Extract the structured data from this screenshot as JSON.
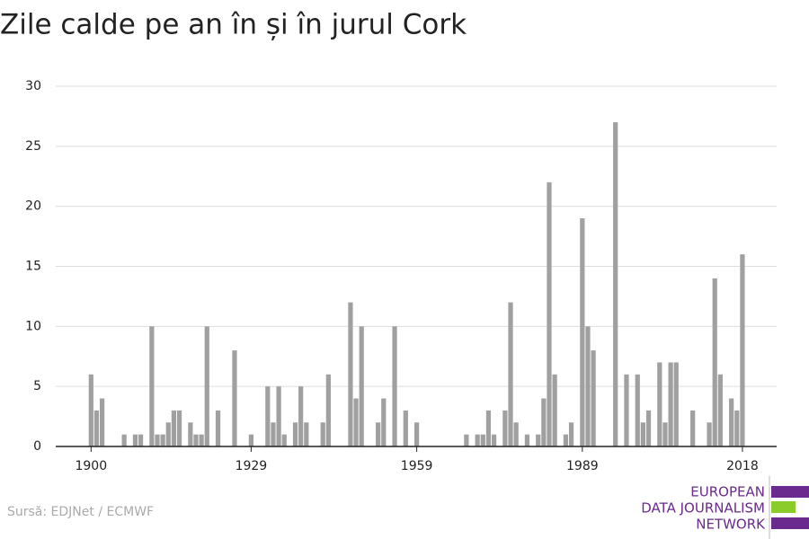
{
  "chart_data": {
    "type": "bar",
    "title": "Zile calde pe an în și în jurul Cork",
    "source": "Sursă: EDJNet / ECMWF",
    "logo": [
      "EUROPEAN",
      "DATA JOURNALISM",
      "NETWORK"
    ],
    "color": "#a0a0a0",
    "x": [
      1900,
      1901,
      1902,
      1903,
      1904,
      1905,
      1906,
      1907,
      1908,
      1909,
      1910,
      1911,
      1912,
      1913,
      1914,
      1915,
      1916,
      1917,
      1918,
      1919,
      1920,
      1921,
      1922,
      1923,
      1924,
      1925,
      1926,
      1927,
      1928,
      1929,
      1930,
      1931,
      1932,
      1933,
      1934,
      1935,
      1936,
      1937,
      1938,
      1939,
      1940,
      1941,
      1942,
      1943,
      1944,
      1945,
      1946,
      1947,
      1948,
      1949,
      1950,
      1951,
      1952,
      1953,
      1954,
      1955,
      1956,
      1957,
      1958,
      1959,
      1960,
      1961,
      1962,
      1963,
      1964,
      1965,
      1966,
      1967,
      1968,
      1969,
      1970,
      1971,
      1972,
      1973,
      1974,
      1975,
      1976,
      1977,
      1978,
      1979,
      1980,
      1981,
      1982,
      1983,
      1984,
      1985,
      1986,
      1987,
      1988,
      1989,
      1990,
      1991,
      1992,
      1993,
      1994,
      1995,
      1996,
      1997,
      1998,
      1999,
      2000,
      2001,
      2002,
      2003,
      2004,
      2005,
      2006,
      2007,
      2008,
      2009,
      2010,
      2011,
      2012,
      2013,
      2014,
      2015,
      2016,
      2017,
      2018
    ],
    "values": [
      6,
      3,
      4,
      0,
      0,
      0,
      1,
      0,
      1,
      1,
      0,
      10,
      1,
      1,
      2,
      3,
      3,
      0,
      2,
      1,
      1,
      10,
      0,
      3,
      0,
      0,
      8,
      0,
      0,
      1,
      0,
      0,
      5,
      2,
      5,
      1,
      0,
      2,
      5,
      2,
      0,
      0,
      2,
      6,
      0,
      0,
      0,
      12,
      4,
      10,
      0,
      0,
      2,
      4,
      0,
      10,
      0,
      3,
      0,
      2,
      0,
      0,
      0,
      0,
      0,
      0,
      0,
      0,
      1,
      0,
      1,
      1,
      3,
      1,
      0,
      3,
      12,
      2,
      0,
      1,
      0,
      1,
      4,
      22,
      6,
      0,
      1,
      2,
      0,
      19,
      10,
      8,
      0,
      0,
      0,
      27,
      0,
      6,
      0,
      6,
      2,
      3,
      0,
      7,
      2,
      7,
      7,
      0,
      0,
      3,
      0,
      0,
      2,
      14,
      6,
      0,
      4,
      3,
      16
    ],
    "xlim": [
      1893.6,
      2024.2
    ],
    "xticks": [
      1900,
      1929,
      1959,
      1989,
      2018
    ],
    "ylim": [
      0,
      30
    ],
    "yticks": [
      0,
      5,
      10,
      15,
      20,
      25,
      30
    ],
    "grid": true
  }
}
